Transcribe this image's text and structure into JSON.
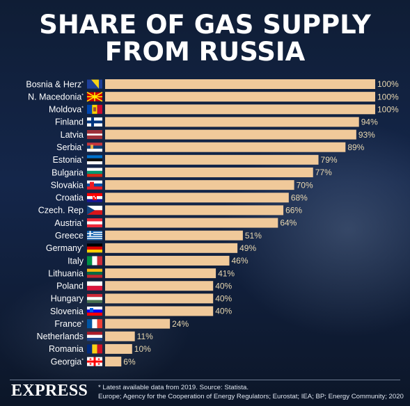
{
  "title_lines": [
    "SHARE OF GAS SUPPLY",
    "FROM RUSSIA"
  ],
  "brand": "EXPRESS",
  "notes": [
    "* Latest available data from 2019. Source: Statista.",
    "Europe; Agency for the Cooperation of Energy Regulators; Eurostat; IEA; BP; Energy Community; 2020"
  ],
  "colors": {
    "bar": "#f0c99a",
    "background": "#0f1d35",
    "value_text": "#e8d7b0"
  },
  "chart_data": {
    "type": "bar",
    "orientation": "horizontal",
    "title": "SHARE OF GAS SUPPLY FROM RUSSIA",
    "xlabel": "",
    "ylabel": "",
    "xlim": [
      0,
      100
    ],
    "unit": "%",
    "grid": false,
    "categories": [
      {
        "label": "Bosnia & Herz",
        "asterisk": true,
        "value": 100,
        "flag": "bosnia-flag-icon"
      },
      {
        "label": "N. Macedonia",
        "asterisk": true,
        "value": 100,
        "flag": "north-macedonia-flag-icon"
      },
      {
        "label": "Moldova",
        "asterisk": true,
        "value": 100,
        "flag": "moldova-flag-icon"
      },
      {
        "label": "Finland",
        "asterisk": false,
        "value": 94,
        "flag": "finland-flag-icon"
      },
      {
        "label": "Latvia",
        "asterisk": false,
        "value": 93,
        "flag": "latvia-flag-icon"
      },
      {
        "label": "Serbia",
        "asterisk": true,
        "value": 89,
        "flag": "serbia-flag-icon"
      },
      {
        "label": "Estonia",
        "asterisk": true,
        "value": 79,
        "flag": "estonia-flag-icon"
      },
      {
        "label": "Bulgaria",
        "asterisk": false,
        "value": 77,
        "flag": "bulgaria-flag-icon"
      },
      {
        "label": "Slovakia",
        "asterisk": false,
        "value": 70,
        "flag": "slovakia-flag-icon"
      },
      {
        "label": "Croatia",
        "asterisk": false,
        "value": 68,
        "flag": "croatia-flag-icon"
      },
      {
        "label": "Czech. Rep",
        "asterisk": false,
        "value": 66,
        "flag": "czech-flag-icon"
      },
      {
        "label": "Austria",
        "asterisk": true,
        "value": 64,
        "flag": "austria-flag-icon"
      },
      {
        "label": "Greece",
        "asterisk": false,
        "value": 51,
        "flag": "greece-flag-icon"
      },
      {
        "label": "Germany",
        "asterisk": true,
        "value": 49,
        "flag": "germany-flag-icon"
      },
      {
        "label": "Italy",
        "asterisk": false,
        "value": 46,
        "flag": "italy-flag-icon"
      },
      {
        "label": "Lithuania",
        "asterisk": false,
        "value": 41,
        "flag": "lithuania-flag-icon"
      },
      {
        "label": "Poland",
        "asterisk": false,
        "value": 40,
        "flag": "poland-flag-icon"
      },
      {
        "label": "Hungary",
        "asterisk": false,
        "value": 40,
        "flag": "hungary-flag-icon"
      },
      {
        "label": "Slovenia",
        "asterisk": false,
        "value": 40,
        "flag": "slovenia-flag-icon"
      },
      {
        "label": "France",
        "asterisk": true,
        "value": 24,
        "flag": "france-flag-icon"
      },
      {
        "label": "Netherlands",
        "asterisk": false,
        "value": 11,
        "flag": "netherlands-flag-icon"
      },
      {
        "label": "Romania",
        "asterisk": false,
        "value": 10,
        "flag": "romania-flag-icon"
      },
      {
        "label": "Georgia",
        "asterisk": true,
        "value": 6,
        "flag": "georgia-flag-icon"
      }
    ]
  }
}
